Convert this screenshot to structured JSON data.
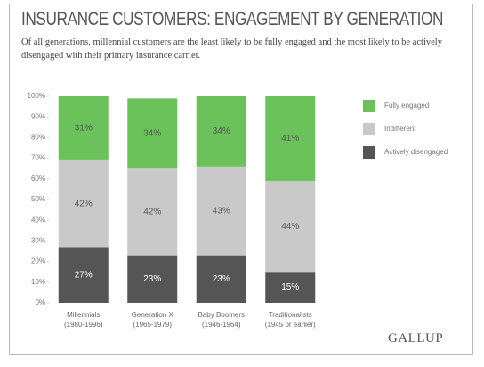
{
  "chart_data": {
    "type": "stacked_bar",
    "title": "INSURANCE CUSTOMERS: ENGAGEMENT BY GENERATION",
    "subtitle": "Of all generations, millennial customers are the least likely to be fully engaged and the most likely to be actively disengaged with their primary insurance carrier.",
    "categories": [
      "Millennials\n(1980-1996)",
      "Generation X\n(1965-1979)",
      "Baby Boomers\n(1946-1964)",
      "Traditionalists\n(1945 or earlier)"
    ],
    "series": [
      {
        "name": "Actively disengaged",
        "color": "#555555",
        "values": [
          27,
          23,
          23,
          15
        ],
        "value_labels": [
          "27%",
          "23%",
          "23%",
          "15%"
        ]
      },
      {
        "name": "Indifferent",
        "color": "#c9c9c9",
        "values": [
          42,
          42,
          43,
          44
        ],
        "value_labels": [
          "42%",
          "42%",
          "43%",
          "44%"
        ]
      },
      {
        "name": "Fully engaged",
        "color": "#6cc25a",
        "values": [
          31,
          34,
          34,
          41
        ],
        "value_labels": [
          "31%",
          "34%",
          "34%",
          "41%"
        ]
      }
    ],
    "ylim": [
      0,
      100
    ],
    "yticks": [
      {
        "value": 0,
        "label": "0%"
      },
      {
        "value": 10,
        "label": "10%"
      },
      {
        "value": 20,
        "label": "20%"
      },
      {
        "value": 30,
        "label": "30%"
      },
      {
        "value": 40,
        "label": "40%"
      },
      {
        "value": 50,
        "label": "50%"
      },
      {
        "value": 60,
        "label": "60%"
      },
      {
        "value": 70,
        "label": "70%"
      },
      {
        "value": 80,
        "label": "80%"
      },
      {
        "value": 90,
        "label": "90%"
      },
      {
        "value": 100,
        "label": "100%"
      }
    ],
    "grid": false,
    "legend": "right",
    "logo": "GALLUP"
  }
}
